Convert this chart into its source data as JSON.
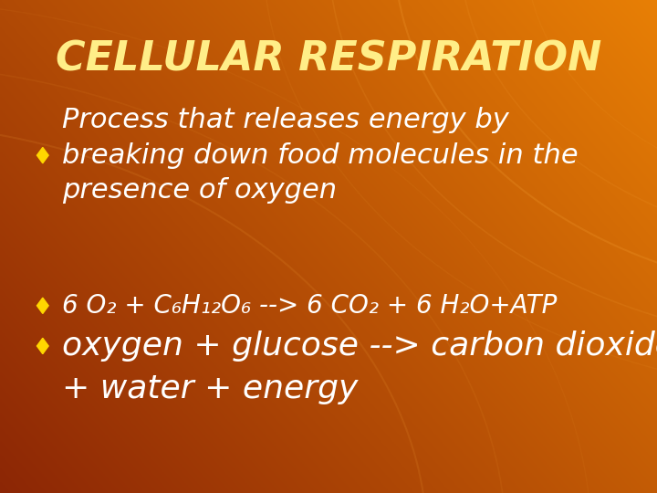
{
  "title": "CELLULAR RESPIRATION",
  "title_color": "#FFEE88",
  "title_fontsize": 32,
  "text_color": "#FFFFFF",
  "bullet_color": "#FFD700",
  "bullet1_line1": "Process that releases energy by",
  "bullet1_line2": "breaking down food molecules in the",
  "bullet1_line3": "presence of oxygen",
  "bullet1_fontsize": 22,
  "bullet2": "6 O₂ + C₆H₁₂O₆ --> 6 CO₂ + 6 H₂O+ATP",
  "bullet2_fontsize": 20,
  "bullet3_line1": "oxygen + glucose --> carbon dioxide",
  "bullet3_line2": "+ water + energy",
  "bullet3_fontsize": 26,
  "bg_left_color": "#B84400",
  "bg_right_color": "#D07000",
  "figsize": [
    7.2,
    5.4
  ],
  "dpi": 100
}
